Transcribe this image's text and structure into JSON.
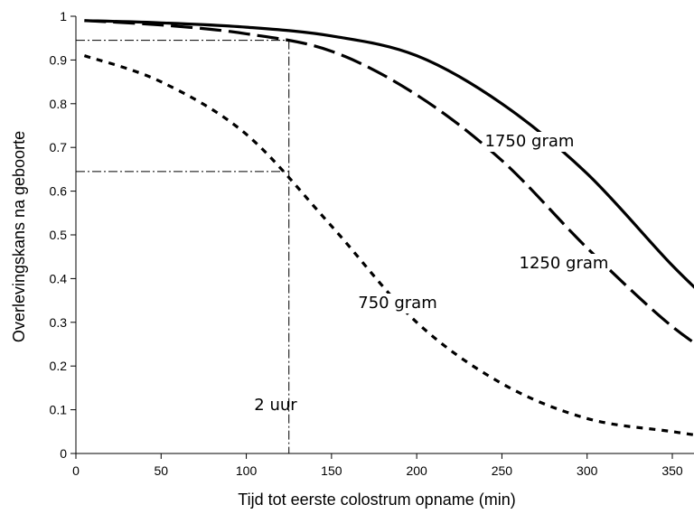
{
  "chart_data": {
    "type": "line",
    "title": "",
    "xlabel": "Tijd tot eerste colostrum opname (min)",
    "ylabel": "Overlevingskans na geboorte",
    "xlim": [
      0,
      385
    ],
    "ylim": [
      0,
      1
    ],
    "xticks": [
      0,
      50,
      100,
      150,
      200,
      250,
      300,
      350
    ],
    "yticks": [
      0,
      0.1,
      0.2,
      0.3,
      0.4,
      0.5,
      0.6,
      0.7,
      0.8,
      0.9,
      1
    ],
    "ytick_labels": [
      "0",
      "0.1",
      "0.2",
      "0.3",
      "0.4",
      "0.5",
      "0.6",
      "0.7",
      "0.8",
      "0.9",
      "1"
    ],
    "grid": false,
    "legend": "none",
    "series": [
      {
        "name": "1750 gram",
        "style": "solid",
        "color": "#000000",
        "x": [
          5,
          50,
          100,
          150,
          200,
          250,
          300,
          350,
          385
        ],
        "y": [
          0.99,
          0.985,
          0.975,
          0.955,
          0.91,
          0.8,
          0.64,
          0.43,
          0.3
        ]
      },
      {
        "name": "1250 gram",
        "style": "long-dash",
        "color": "#000000",
        "x": [
          5,
          50,
          100,
          150,
          200,
          250,
          300,
          350,
          385
        ],
        "y": [
          0.99,
          0.98,
          0.96,
          0.92,
          0.82,
          0.67,
          0.47,
          0.29,
          0.2
        ]
      },
      {
        "name": "750 gram",
        "style": "short-dash",
        "color": "#000000",
        "x": [
          5,
          50,
          100,
          150,
          200,
          250,
          300,
          350,
          385
        ],
        "y": [
          0.91,
          0.85,
          0.73,
          0.52,
          0.3,
          0.16,
          0.08,
          0.05,
          0.03
        ]
      }
    ],
    "reference": {
      "x": 125,
      "y_high": 0.945,
      "y_low": 0.645,
      "label": "2 uur"
    }
  }
}
